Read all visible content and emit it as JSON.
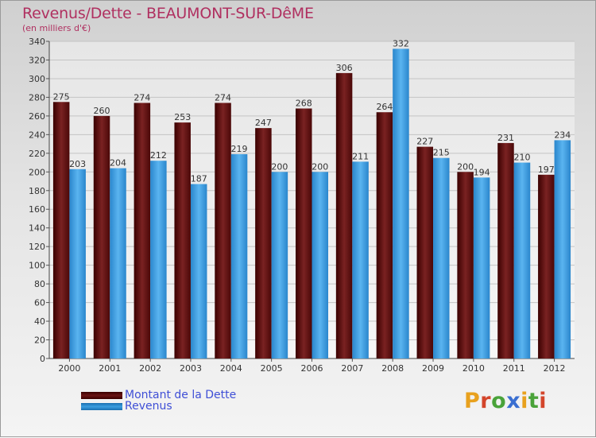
{
  "title": "Revenus/Dette - BEAUMONT-SUR-DêME",
  "subtitle": "(en milliers d'€)",
  "legend": [
    {
      "label": "Montant de la Dette",
      "color": "#6a1414"
    },
    {
      "label": "Revenus",
      "color": "#3c9ee0"
    }
  ],
  "logo": {
    "text": "Proxiti",
    "colors": [
      "#e8a11e",
      "#d3452b",
      "#4aa33a",
      "#3a6fd1",
      "#e8a11e",
      "#4aa33a",
      "#d3452b"
    ]
  },
  "chart_data": {
    "type": "bar",
    "title": "Revenus/Dette - BEAUMONT-SUR-DêME",
    "subtitle": "(en milliers d'€)",
    "categories": [
      "2000",
      "2001",
      "2002",
      "2003",
      "2004",
      "2005",
      "2006",
      "2007",
      "2008",
      "2009",
      "2010",
      "2011",
      "2012"
    ],
    "series": [
      {
        "name": "Montant de la Dette",
        "color": "#6a1414",
        "values": [
          275,
          260,
          274,
          253,
          274,
          247,
          268,
          306,
          264,
          227,
          200,
          231,
          197
        ]
      },
      {
        "name": "Revenus",
        "color": "#3c9ee0",
        "values": [
          203,
          204,
          212,
          187,
          219,
          200,
          200,
          211,
          332,
          215,
          194,
          210,
          234
        ]
      }
    ],
    "ylim": [
      0,
      340
    ],
    "ytick_step": 20,
    "grid": true,
    "legend_position": "bottom-left"
  }
}
